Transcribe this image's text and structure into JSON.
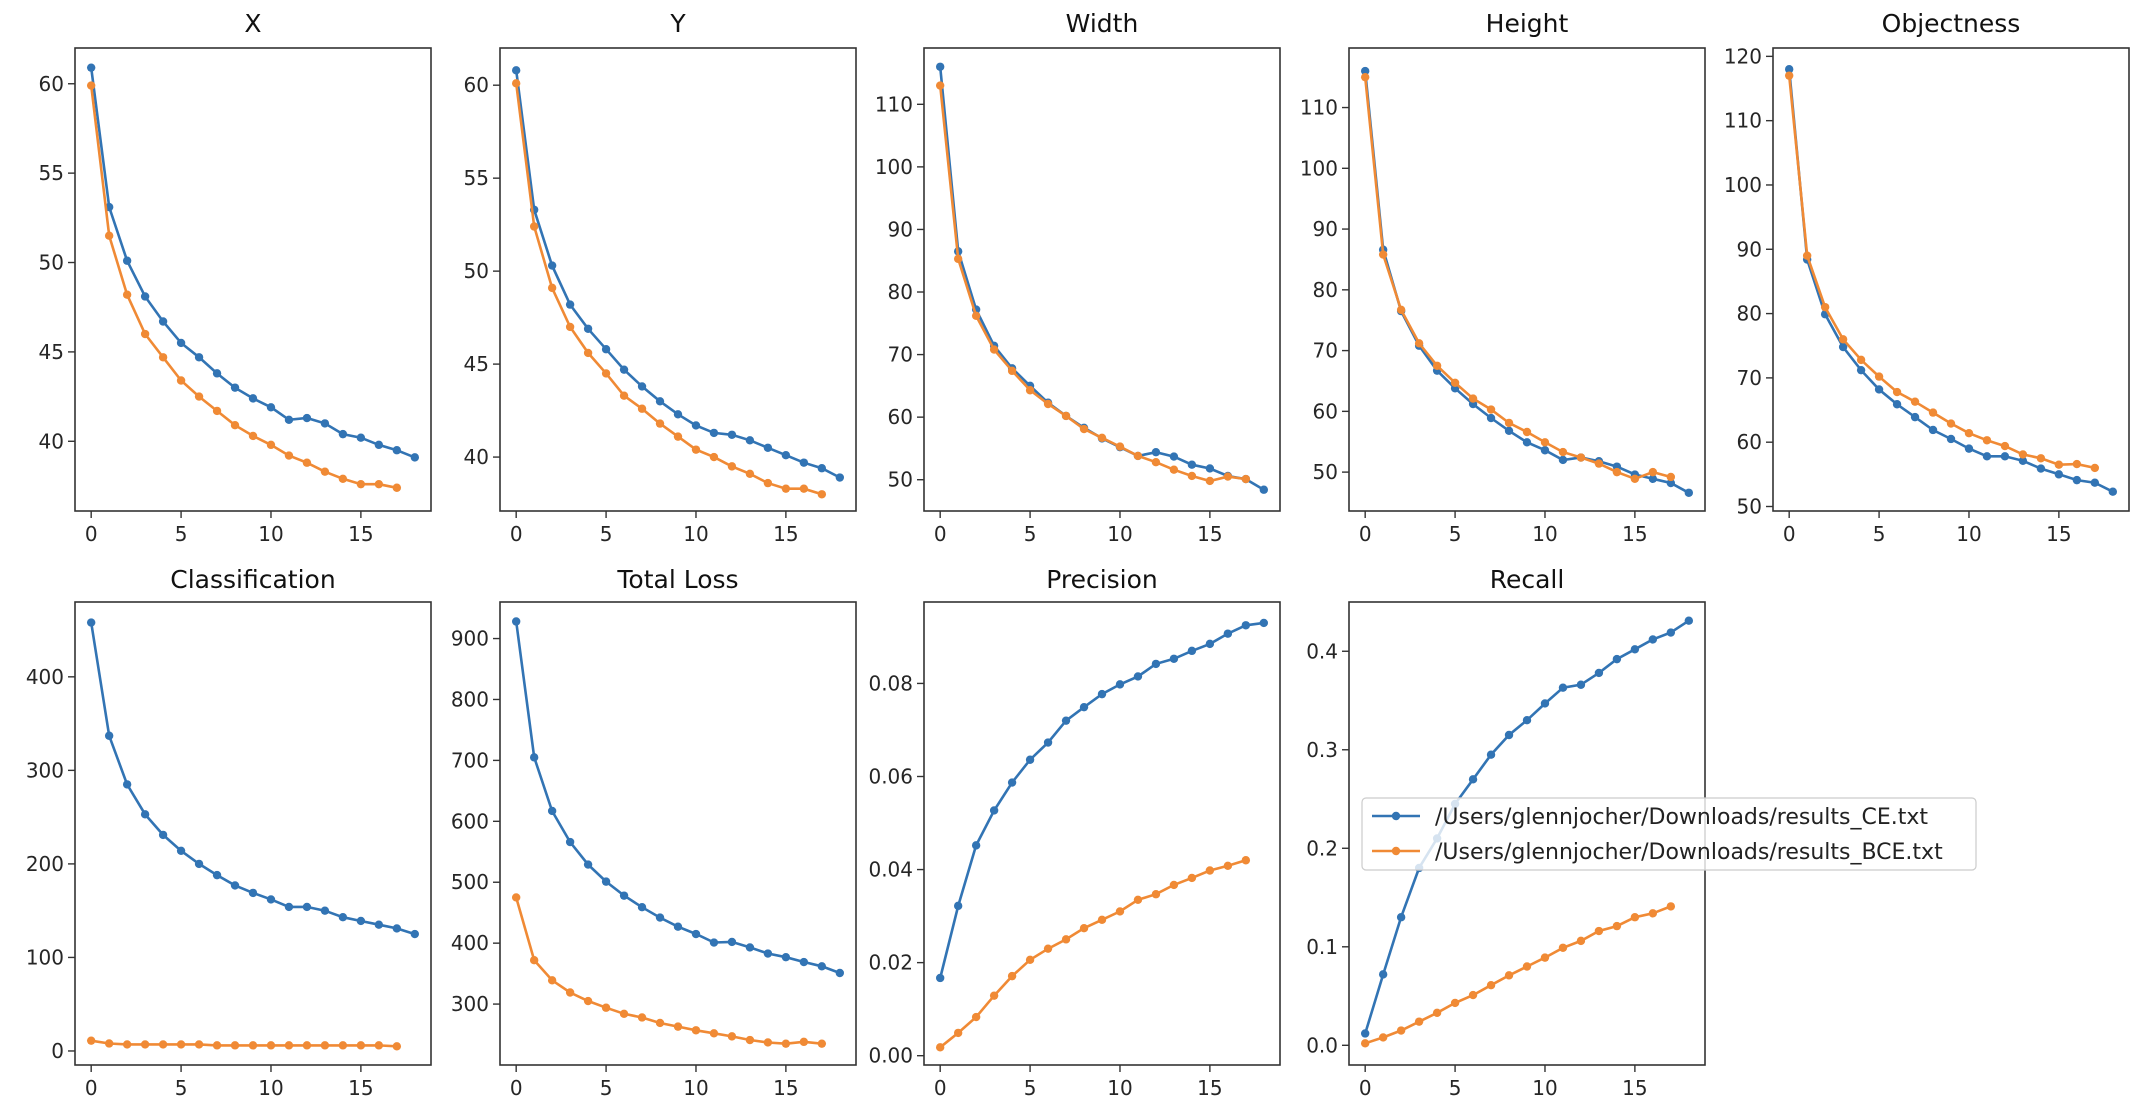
{
  "chart_data": [
    {
      "type": "line",
      "title": "X",
      "xticks": [
        0,
        5,
        10,
        15
      ],
      "yticks": [
        40,
        45,
        50,
        55,
        60
      ],
      "ylim": [
        36.1,
        62
      ],
      "xlim": [
        -0.9,
        18.9
      ],
      "series": [
        {
          "name": "/Users/glennjocher/Downloads/results_CE.txt",
          "values": [
            60.9,
            53.1,
            50.1,
            48.1,
            46.7,
            45.5,
            44.7,
            43.8,
            43.0,
            42.4,
            41.9,
            41.2,
            41.3,
            41.0,
            40.4,
            40.2,
            39.8,
            39.5,
            39.1
          ]
        },
        {
          "name": "/Users/glennjocher/Downloads/results_BCE.txt",
          "values": [
            59.9,
            51.5,
            48.2,
            46.0,
            44.7,
            43.4,
            42.5,
            41.7,
            40.9,
            40.3,
            39.8,
            39.2,
            38.8,
            38.3,
            37.9,
            37.6,
            37.6,
            37.4
          ]
        }
      ]
    },
    {
      "type": "line",
      "title": "Y",
      "xticks": [
        0,
        5,
        10,
        15
      ],
      "yticks": [
        40,
        45,
        50,
        55,
        60
      ],
      "ylim": [
        37.1,
        62
      ],
      "xlim": [
        -0.9,
        18.9
      ],
      "series": [
        {
          "name": "/Users/glennjocher/Downloads/results_CE.txt",
          "values": [
            60.8,
            53.3,
            50.3,
            48.2,
            46.9,
            45.8,
            44.7,
            43.8,
            43.0,
            42.3,
            41.7,
            41.3,
            41.2,
            40.9,
            40.5,
            40.1,
            39.7,
            39.4,
            38.9
          ]
        },
        {
          "name": "/Users/glennjocher/Downloads/results_BCE.txt",
          "values": [
            60.1,
            52.4,
            49.1,
            47.0,
            45.6,
            44.5,
            43.3,
            42.6,
            41.8,
            41.1,
            40.4,
            40.0,
            39.5,
            39.1,
            38.6,
            38.3,
            38.3,
            38.0
          ]
        }
      ]
    },
    {
      "type": "line",
      "title": "Width",
      "xticks": [
        0,
        5,
        10,
        15
      ],
      "yticks": [
        50,
        60,
        70,
        80,
        90,
        100,
        110
      ],
      "ylim": [
        45,
        119
      ],
      "xlim": [
        -0.9,
        18.9
      ],
      "series": [
        {
          "name": "/Users/glennjocher/Downloads/results_CE.txt",
          "values": [
            116,
            86.5,
            77.2,
            71.4,
            67.8,
            65.0,
            62.3,
            60.2,
            58.3,
            56.6,
            55.2,
            53.8,
            54.4,
            53.7,
            52.4,
            51.8,
            50.6,
            50.1,
            48.4
          ]
        },
        {
          "name": "/Users/glennjocher/Downloads/results_BCE.txt",
          "values": [
            113,
            85.3,
            76.2,
            70.8,
            67.4,
            64.3,
            62.1,
            60.2,
            58.1,
            56.7,
            55.3,
            53.8,
            52.8,
            51.6,
            50.6,
            49.8,
            50.5,
            50.1
          ]
        }
      ]
    },
    {
      "type": "line",
      "title": "Height",
      "xticks": [
        0,
        5,
        10,
        15
      ],
      "yticks": [
        50,
        60,
        70,
        80,
        90,
        100,
        110
      ],
      "ylim": [
        43.6,
        119.8
      ],
      "xlim": [
        -0.9,
        18.9
      ],
      "series": [
        {
          "name": "/Users/glennjocher/Downloads/results_CE.txt",
          "values": [
            116,
            86.6,
            76.5,
            70.8,
            66.7,
            63.8,
            61.2,
            58.9,
            56.8,
            54.9,
            53.6,
            52.0,
            52.4,
            51.8,
            50.9,
            49.6,
            48.9,
            48.2,
            46.6
          ]
        },
        {
          "name": "/Users/glennjocher/Downloads/results_BCE.txt",
          "values": [
            115,
            85.8,
            76.7,
            71.2,
            67.5,
            64.7,
            62.1,
            60.3,
            58.1,
            56.6,
            54.9,
            53.3,
            52.4,
            51.4,
            50.0,
            48.9,
            50.0,
            49.2
          ]
        }
      ]
    },
    {
      "type": "line",
      "title": "Objectness",
      "xticks": [
        0,
        5,
        10,
        15
      ],
      "yticks": [
        50,
        60,
        70,
        80,
        90,
        100,
        110,
        120
      ],
      "ylim": [
        49.3,
        121.3
      ],
      "xlim": [
        -0.9,
        18.9
      ],
      "series": [
        {
          "name": "/Users/glennjocher/Downloads/results_CE.txt",
          "values": [
            118,
            88.4,
            79.9,
            74.8,
            71.2,
            68.2,
            65.9,
            63.9,
            61.9,
            60.5,
            59.0,
            57.8,
            57.8,
            57.1,
            55.9,
            55.0,
            54.1,
            53.7,
            52.3
          ]
        },
        {
          "name": "/Users/glennjocher/Downloads/results_BCE.txt",
          "values": [
            117,
            89.0,
            81.0,
            76.0,
            72.8,
            70.2,
            67.8,
            66.3,
            64.6,
            62.9,
            61.4,
            60.3,
            59.4,
            58.1,
            57.5,
            56.5,
            56.6,
            56.0
          ]
        }
      ]
    },
    {
      "type": "line",
      "title": "Classification",
      "xticks": [
        0,
        5,
        10,
        15
      ],
      "yticks": [
        0,
        100,
        200,
        300,
        400
      ],
      "ylim": [
        -15,
        480
      ],
      "xlim": [
        -0.9,
        18.9
      ],
      "series": [
        {
          "name": "/Users/glennjocher/Downloads/results_CE.txt",
          "values": [
            458,
            337,
            285,
            253,
            231,
            214,
            200,
            188,
            177,
            169,
            162,
            154,
            154,
            150,
            143,
            139,
            135,
            131,
            125
          ]
        },
        {
          "name": "/Users/glennjocher/Downloads/results_BCE.txt",
          "values": [
            11,
            8,
            7,
            7,
            7,
            7,
            7,
            6,
            6,
            6,
            6,
            6,
            6,
            6,
            6,
            6,
            6,
            5
          ]
        }
      ]
    },
    {
      "type": "line",
      "title": "Total Loss",
      "xticks": [
        0,
        5,
        10,
        15
      ],
      "yticks": [
        300,
        400,
        500,
        600,
        700,
        800,
        900
      ],
      "ylim": [
        200,
        960
      ],
      "xlim": [
        -0.9,
        18.9
      ],
      "series": [
        {
          "name": "/Users/glennjocher/Downloads/results_CE.txt",
          "values": [
            928,
            705,
            617,
            566,
            529,
            501,
            478,
            459,
            442,
            427,
            415,
            401,
            402,
            393,
            383,
            377,
            369,
            362,
            351
          ]
        },
        {
          "name": "/Users/glennjocher/Downloads/results_BCE.txt",
          "values": [
            475,
            372,
            339,
            319,
            305,
            294,
            284,
            278,
            269,
            263,
            257,
            252,
            247,
            241,
            237,
            235,
            238,
            235
          ]
        }
      ]
    },
    {
      "type": "line",
      "title": "Precision",
      "xticks": [
        0,
        5,
        10,
        15
      ],
      "yticks": [
        0.0,
        0.02,
        0.04,
        0.06,
        0.08
      ],
      "ytick_labels": [
        "0.00",
        "0.02",
        "0.04",
        "0.06",
        "0.08"
      ],
      "ylim": [
        -0.002,
        0.0975
      ],
      "xlim": [
        -0.9,
        18.9
      ],
      "series": [
        {
          "name": "/Users/glennjocher/Downloads/results_CE.txt",
          "values": [
            0.0167,
            0.0322,
            0.0452,
            0.0527,
            0.0587,
            0.0636,
            0.0673,
            0.072,
            0.0749,
            0.0777,
            0.0798,
            0.0815,
            0.0842,
            0.0853,
            0.087,
            0.0885,
            0.0907,
            0.0925,
            0.093
          ]
        },
        {
          "name": "/Users/glennjocher/Downloads/results_BCE.txt",
          "values": [
            0.0018,
            0.0049,
            0.0083,
            0.0129,
            0.0171,
            0.0206,
            0.023,
            0.025,
            0.0274,
            0.0292,
            0.031,
            0.0335,
            0.0347,
            0.0367,
            0.0382,
            0.0398,
            0.0408,
            0.042
          ]
        }
      ]
    },
    {
      "type": "line",
      "title": "Recall",
      "xticks": [
        0,
        5,
        10,
        15
      ],
      "yticks": [
        0.0,
        0.1,
        0.2,
        0.3,
        0.4
      ],
      "ytick_labels": [
        "0.0",
        "0.1",
        "0.2",
        "0.3",
        "0.4"
      ],
      "ylim": [
        -0.02,
        0.45
      ],
      "xlim": [
        -0.9,
        18.9
      ],
      "series": [
        {
          "name": "/Users/glennjocher/Downloads/results_CE.txt",
          "values": [
            0.012,
            0.072,
            0.13,
            0.18,
            0.21,
            0.245,
            0.27,
            0.295,
            0.315,
            0.33,
            0.347,
            0.363,
            0.366,
            0.378,
            0.392,
            0.402,
            0.412,
            0.419,
            0.431
          ]
        },
        {
          "name": "/Users/glennjocher/Downloads/results_BCE.txt",
          "values": [
            0.002,
            0.008,
            0.015,
            0.024,
            0.033,
            0.043,
            0.051,
            0.061,
            0.071,
            0.08,
            0.089,
            0.099,
            0.106,
            0.116,
            0.121,
            0.13,
            0.134,
            0.141
          ]
        }
      ]
    }
  ],
  "legend": {
    "placement": "center",
    "entries": [
      {
        "label": "/Users/glennjocher/Downloads/results_CE.txt",
        "color": "#3274b4"
      },
      {
        "label": "/Users/glennjocher/Downloads/results_BCE.txt",
        "color": "#f08a35"
      }
    ]
  },
  "colors": [
    "#3274b4",
    "#f08a35"
  ]
}
